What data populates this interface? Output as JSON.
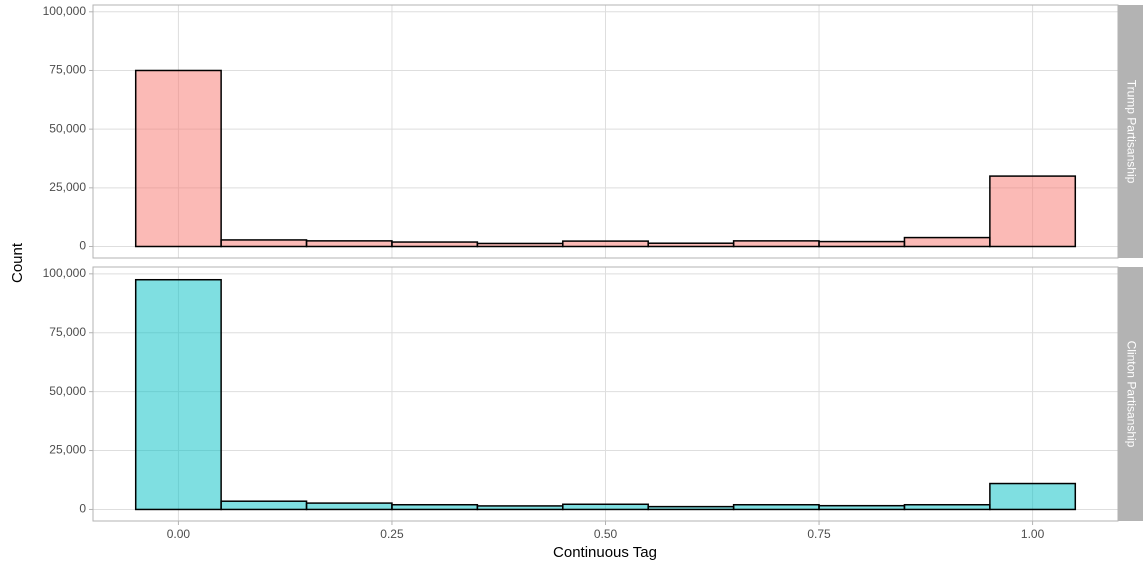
{
  "chart_data": {
    "type": "histogram",
    "x_label": "Continuous Tag",
    "y_label": "Count",
    "bins": [
      -0.05,
      0.05,
      0.15,
      0.25,
      0.35,
      0.45,
      0.55,
      0.65,
      0.75,
      0.85,
      0.95,
      1.05
    ],
    "xlim": [
      -0.1,
      1.1
    ],
    "xticks": [
      {
        "value": 0,
        "label": "0.00"
      },
      {
        "value": 0.25,
        "label": "0.25"
      },
      {
        "value": 0.5,
        "label": "0.50"
      },
      {
        "value": 0.75,
        "label": "0.75"
      },
      {
        "value": 1,
        "label": "1.00"
      }
    ],
    "ylim": [
      -4900,
      102900
    ],
    "yticks": [
      0,
      {
        "value": 25000,
        "label": "25,000"
      },
      {
        "value": 50000,
        "label": "50,000"
      },
      {
        "value": 75000,
        "label": "75,000"
      },
      {
        "value": 100000,
        "label": "100,000"
      }
    ],
    "grid": true,
    "series": [
      {
        "name": "Trump Partisanship",
        "color": "#f8766d",
        "values": [
          75000,
          2800,
          2400,
          1900,
          1300,
          2300,
          1400,
          2400,
          2100,
          3800,
          30000
        ]
      },
      {
        "name": "Clinton Partisanship",
        "color": "#00bfc4",
        "values": [
          97500,
          3500,
          2700,
          2000,
          1500,
          2200,
          1200,
          2000,
          1600,
          2000,
          11000
        ]
      }
    ]
  }
}
